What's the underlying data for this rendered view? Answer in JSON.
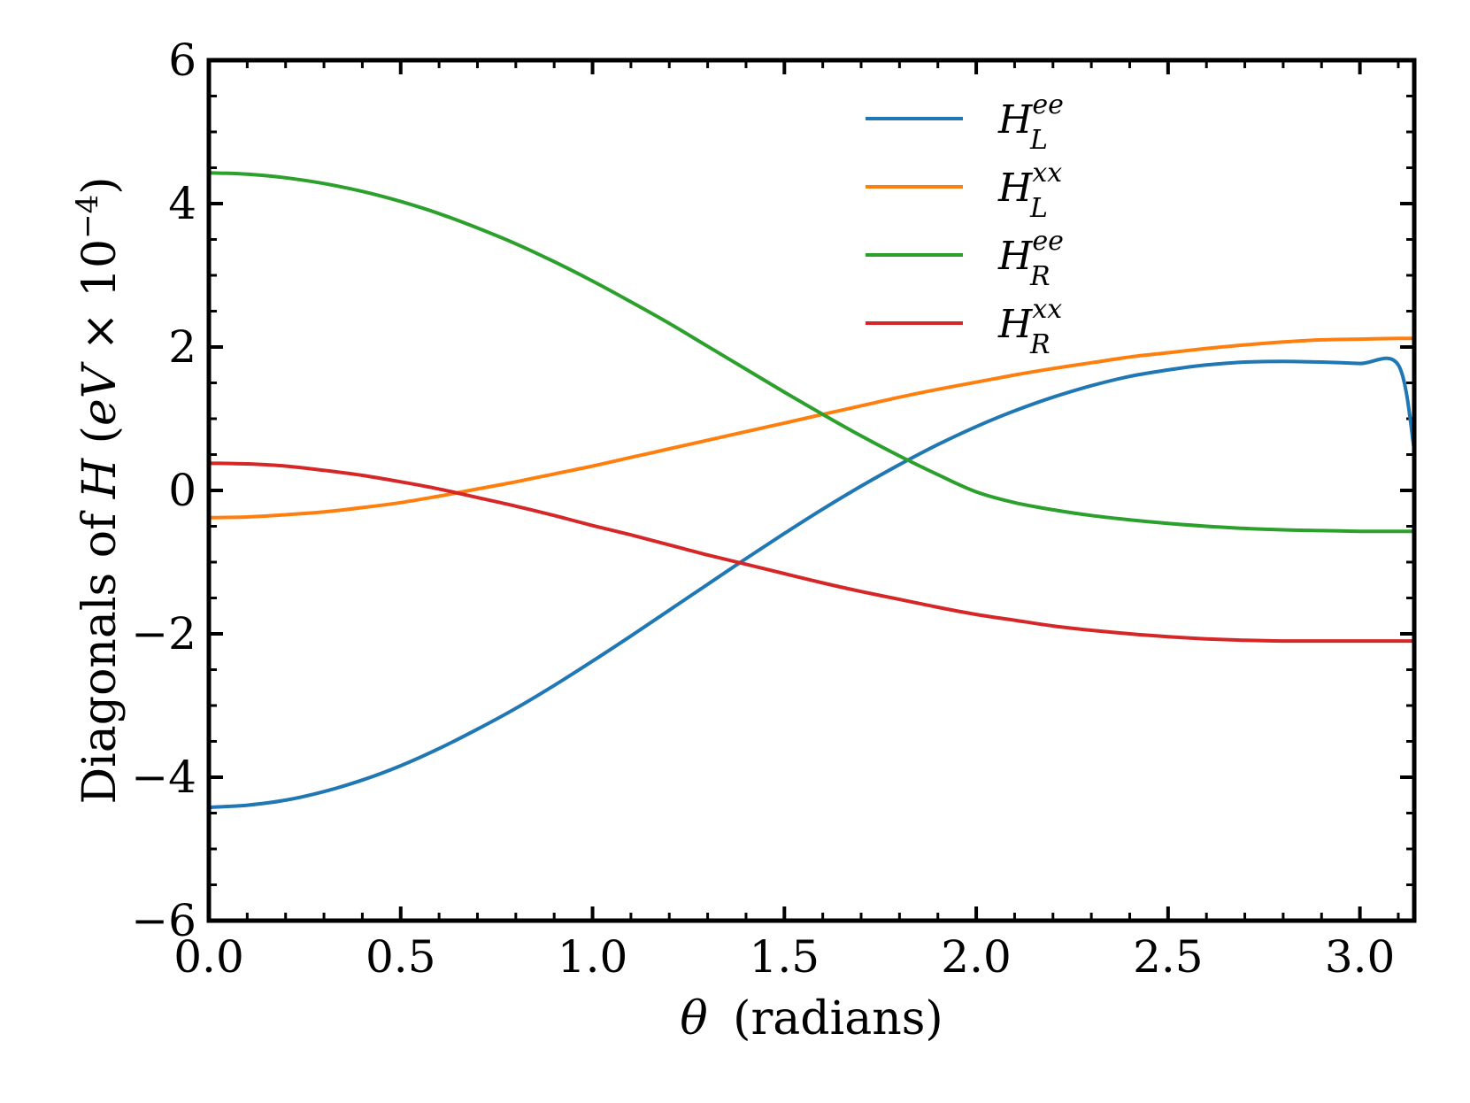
{
  "chart_data": {
    "type": "line",
    "title": "",
    "xlabel": "θ (radians)",
    "xlabel_parts": {
      "symbol": "θ",
      "text": "(radians)"
    },
    "ylabel": "Diagonals of H (eV × 10⁻⁴)",
    "ylabel_parts": {
      "prefix": "Diagonals of ",
      "symbol": "H",
      "open": " (",
      "unit": "eV",
      "times": " × 10",
      "exponent": "−4",
      "close": ")"
    },
    "xlim": [
      0,
      3.1416
    ],
    "ylim": [
      -6,
      6
    ],
    "grid": false,
    "legend_position": "top-right",
    "x_ticks": [
      "0.0",
      "0.5",
      "1.0",
      "1.5",
      "2.0",
      "2.5",
      "3.0"
    ],
    "x_tick_values": [
      0,
      0.5,
      1.0,
      1.5,
      2.0,
      2.5,
      3.0
    ],
    "y_ticks": [
      "−6",
      "−4",
      "−2",
      "0",
      "2",
      "4",
      "6"
    ],
    "y_tick_values": [
      -6,
      -4,
      -2,
      0,
      2,
      4,
      6
    ],
    "x": [
      0,
      0.1,
      0.2,
      0.3,
      0.4,
      0.5,
      0.6,
      0.7,
      0.8,
      0.9,
      1.0,
      1.1,
      1.2,
      1.3,
      1.4,
      1.5,
      1.6,
      1.7,
      1.8,
      1.9,
      2.0,
      2.1,
      2.2,
      2.3,
      2.4,
      2.5,
      2.6,
      2.7,
      2.8,
      2.9,
      3.0,
      3.1,
      3.1416
    ],
    "series": [
      {
        "name": "H_L^ee",
        "base": "H",
        "sup": "ee",
        "sub": "L",
        "color": "#1f77b4",
        "values": [
          -4.42,
          -4.39,
          -4.32,
          -4.2,
          -4.04,
          -3.84,
          -3.6,
          -3.33,
          -3.04,
          -2.72,
          -2.38,
          -2.03,
          -1.67,
          -1.31,
          -0.95,
          -0.6,
          -0.26,
          0.06,
          0.36,
          0.64,
          0.89,
          1.11,
          1.3,
          1.46,
          1.59,
          1.68,
          1.75,
          1.79,
          1.8,
          1.79,
          1.77,
          1.75,
          0.57
        ]
      },
      {
        "name": "H_L^xx",
        "base": "H",
        "sup": "xx",
        "sub": "L",
        "color": "#ff7f0e",
        "values": [
          -0.38,
          -0.37,
          -0.34,
          -0.3,
          -0.24,
          -0.17,
          -0.08,
          0.02,
          0.12,
          0.23,
          0.34,
          0.46,
          0.58,
          0.7,
          0.82,
          0.94,
          1.06,
          1.18,
          1.3,
          1.41,
          1.51,
          1.61,
          1.7,
          1.78,
          1.86,
          1.92,
          1.98,
          2.03,
          2.07,
          2.1,
          2.11,
          2.12,
          2.12
        ]
      },
      {
        "name": "H_R^ee",
        "base": "H",
        "sup": "ee",
        "sub": "R",
        "color": "#2ca02c",
        "values": [
          4.43,
          4.41,
          4.36,
          4.28,
          4.17,
          4.03,
          3.86,
          3.66,
          3.44,
          3.19,
          2.92,
          2.63,
          2.33,
          2.01,
          1.69,
          1.37,
          1.06,
          0.76,
          0.48,
          0.22,
          -0.02,
          -0.17,
          -0.27,
          -0.35,
          -0.41,
          -0.46,
          -0.5,
          -0.53,
          -0.55,
          -0.56,
          -0.57,
          -0.57,
          -0.57
        ]
      },
      {
        "name": "H_R^xx",
        "base": "H",
        "sup": "xx",
        "sub": "R",
        "color": "#d62728",
        "values": [
          0.38,
          0.37,
          0.34,
          0.28,
          0.21,
          0.12,
          0.02,
          -0.1,
          -0.22,
          -0.35,
          -0.49,
          -0.62,
          -0.76,
          -0.9,
          -1.03,
          -1.16,
          -1.29,
          -1.41,
          -1.52,
          -1.63,
          -1.73,
          -1.81,
          -1.89,
          -1.95,
          -2.0,
          -2.04,
          -2.07,
          -2.09,
          -2.1,
          -2.1,
          -2.1,
          -2.1,
          -2.1
        ]
      }
    ]
  }
}
